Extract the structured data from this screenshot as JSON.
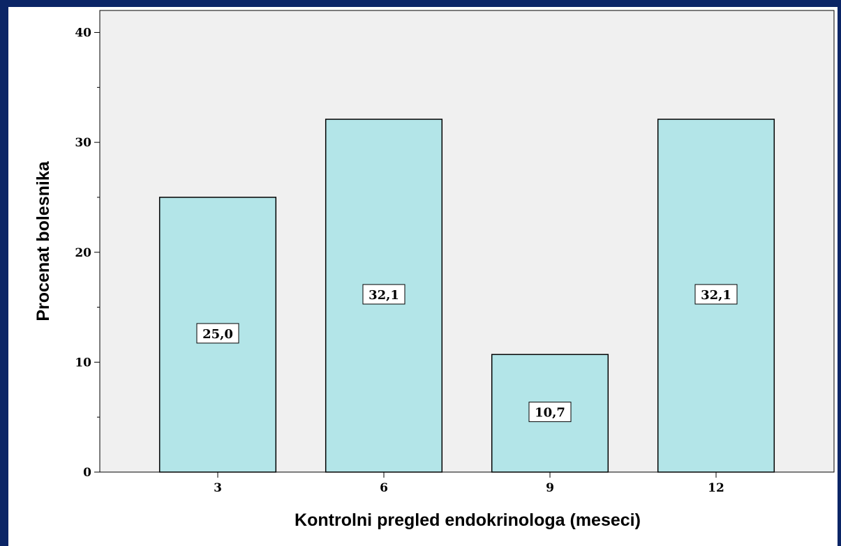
{
  "chart_data": {
    "type": "bar",
    "categories": [
      "3",
      "6",
      "9",
      "12"
    ],
    "values": [
      25.0,
      32.1,
      10.7,
      32.1
    ],
    "value_labels": [
      "25,0",
      "32,1",
      "10,7",
      "32,1"
    ],
    "color": "#b3e5e8",
    "xlabel": "Kontrolni pregled endokrinologa (meseci)",
    "ylabel": "Procenat bolesnika",
    "ylim": [
      0,
      42
    ],
    "yticks": [
      0,
      10,
      20,
      30,
      40
    ],
    "minor_yticks": [
      5,
      15,
      25,
      35
    ]
  }
}
